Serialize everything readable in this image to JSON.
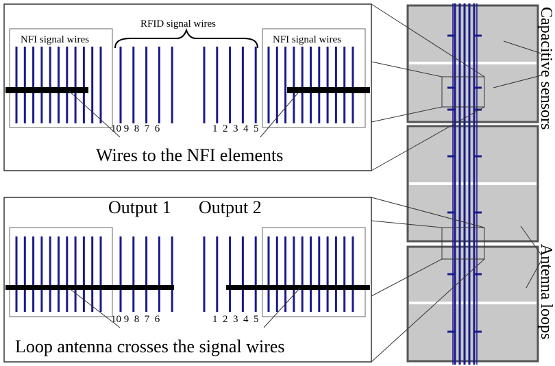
{
  "top_panel": {
    "nfi_left_title": "NFI signal wires",
    "rfid_title": "RFID signal wires",
    "nfi_right_title": "NFI signal wires",
    "numbers_left": "10 9  8  7  6",
    "numbers_right": "1  2  3  4  5",
    "caption": "Wires to the NFI elements"
  },
  "bottom_panel": {
    "output1": "Output 1",
    "output2": "Output 2",
    "numbers_left": "10 9  8  7  6",
    "numbers_right": "1  2  3  4  5",
    "caption": "Loop antenna crosses the signal wires"
  },
  "side_labels": {
    "capacitive": "Capacitive sensors",
    "antenna": "Antenna loops"
  },
  "colors": {
    "wire": "#1a1a8c",
    "loop": "#000000",
    "sensor_fill": "#c8c8c8",
    "sensor_border": "#555555",
    "frame": "#333333"
  }
}
